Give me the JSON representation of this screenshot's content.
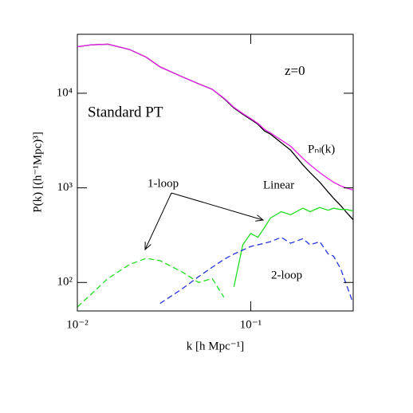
{
  "chart_data": {
    "type": "line",
    "x_label": "k [h Mpc⁻¹]",
    "y_label": "P(k) [(h⁻¹Mpc)³]",
    "xscale": "log",
    "yscale": "log",
    "xlim": [
      0.01,
      0.39
    ],
    "ylim": [
      50,
      42000
    ],
    "xticks": [
      {
        "value": 0.01,
        "label": "10⁻²"
      },
      {
        "value": 0.1,
        "label": "10⁻¹"
      }
    ],
    "yticks": [
      {
        "value": 100,
        "label": "10²"
      },
      {
        "value": 1000,
        "label": "10³"
      },
      {
        "value": 10000,
        "label": "10⁴"
      }
    ],
    "annotations": [
      "z=0",
      "Standard PT"
    ],
    "x": [
      0.01,
      0.012,
      0.015,
      0.02,
      0.025,
      0.03,
      0.04,
      0.05,
      0.06,
      0.07,
      0.08,
      0.09,
      0.1,
      0.11,
      0.12,
      0.13,
      0.15,
      0.17,
      0.2,
      0.22,
      0.25,
      0.28,
      0.3,
      0.33,
      0.36,
      0.39
    ],
    "series": [
      {
        "name": "Linear",
        "color": "#000000",
        "dashed": false,
        "values": [
          31000,
          32500,
          33000,
          29000,
          24000,
          19000,
          15000,
          12600,
          11000,
          8800,
          7000,
          6000,
          5300,
          4700,
          4000,
          3700,
          3000,
          2500,
          1750,
          1450,
          1150,
          900,
          780,
          650,
          540,
          460
        ]
      },
      {
        "name": "Pₙₗ(k)",
        "color": "#e61ee6",
        "dashed": false,
        "values": [
          31000,
          32500,
          33000,
          29000,
          24000,
          19000,
          15000,
          12600,
          11000,
          8900,
          7100,
          6100,
          5400,
          4800,
          4150,
          3800,
          3200,
          2750,
          2050,
          1750,
          1450,
          1250,
          1150,
          1050,
          990,
          950
        ]
      },
      {
        "name": "1-loop",
        "color": "#22dd22",
        "dashed": false,
        "values": [
          null,
          null,
          null,
          null,
          null,
          null,
          null,
          null,
          null,
          null,
          90,
          250,
          330,
          300,
          380,
          480,
          560,
          520,
          610,
          560,
          620,
          580,
          610,
          590,
          590,
          570
        ]
      },
      {
        "color": "#22dd22",
        "dashed": true,
        "values": [
          55,
          75,
          110,
          155,
          180,
          170,
          130,
          100,
          110,
          70,
          null,
          null,
          null,
          null,
          null,
          null,
          null,
          null,
          null,
          null,
          null,
          null,
          null,
          null,
          null,
          null
        ]
      },
      {
        "name": "2-loop",
        "color": "#2233dd",
        "dashed": true,
        "values": [
          null,
          null,
          null,
          null,
          null,
          60,
          85,
          115,
          145,
          175,
          200,
          220,
          240,
          250,
          260,
          270,
          300,
          260,
          290,
          250,
          270,
          200,
          190,
          140,
          90,
          60
        ]
      }
    ]
  }
}
